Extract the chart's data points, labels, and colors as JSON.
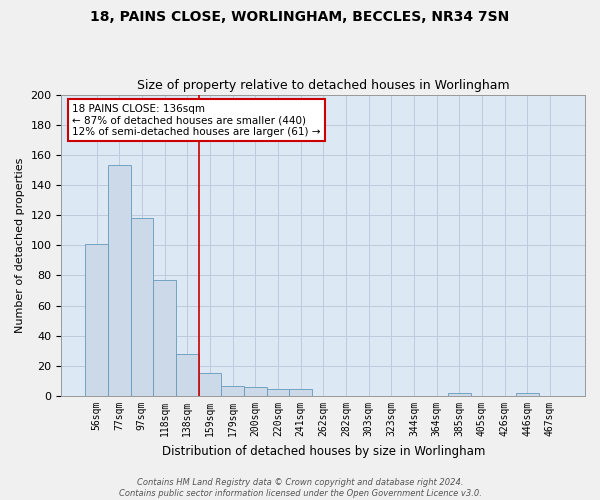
{
  "title1": "18, PAINS CLOSE, WORLINGHAM, BECCLES, NR34 7SN",
  "title2": "Size of property relative to detached houses in Worlingham",
  "xlabel": "Distribution of detached houses by size in Worlingham",
  "ylabel": "Number of detached properties",
  "bar_labels": [
    "56sqm",
    "77sqm",
    "97sqm",
    "118sqm",
    "138sqm",
    "159sqm",
    "179sqm",
    "200sqm",
    "220sqm",
    "241sqm",
    "262sqm",
    "282sqm",
    "303sqm",
    "323sqm",
    "344sqm",
    "364sqm",
    "385sqm",
    "405sqm",
    "426sqm",
    "446sqm",
    "467sqm"
  ],
  "bar_values": [
    101,
    153,
    118,
    77,
    28,
    15,
    7,
    6,
    5,
    5,
    0,
    0,
    0,
    0,
    0,
    0,
    2,
    0,
    0,
    2,
    0
  ],
  "bar_color": "#ccd9e8",
  "bar_edge_color": "#6699bb",
  "grid_color": "#bbccdd",
  "bg_color": "#dce8f4",
  "vline_x": 4.5,
  "vline_color": "#cc0000",
  "annotation_text": "18 PAINS CLOSE: 136sqm\n← 87% of detached houses are smaller (440)\n12% of semi-detached houses are larger (61) →",
  "annotation_box_color": "#ffffff",
  "annotation_box_edge": "#cc0000",
  "footnote": "Contains HM Land Registry data © Crown copyright and database right 2024.\nContains public sector information licensed under the Open Government Licence v3.0.",
  "ylim": [
    0,
    200
  ],
  "yticks": [
    0,
    20,
    40,
    60,
    80,
    100,
    120,
    140,
    160,
    180,
    200
  ],
  "fig_bg": "#f0f0f0"
}
